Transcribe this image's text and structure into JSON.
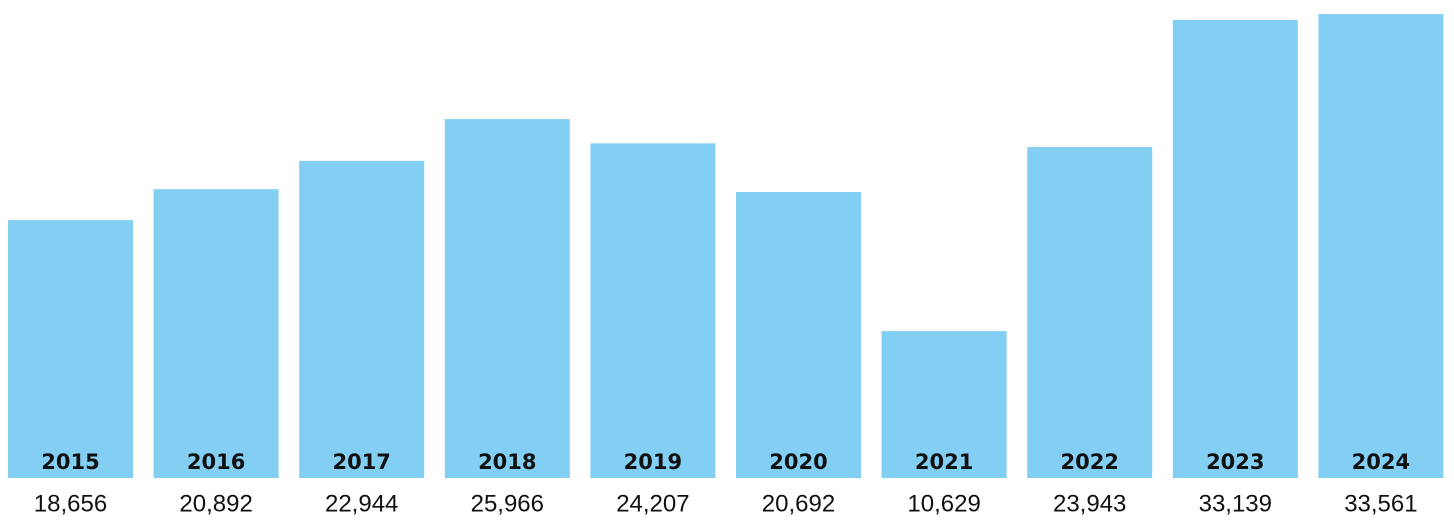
{
  "chart_data": {
    "type": "bar",
    "categories": [
      "2015",
      "2016",
      "2017",
      "2018",
      "2019",
      "2020",
      "2021",
      "2022",
      "2023",
      "2024"
    ],
    "values": [
      18656,
      20892,
      22944,
      25966,
      24207,
      20692,
      10629,
      23943,
      33139,
      33561
    ],
    "value_labels": [
      "18,656",
      "20,892",
      "22,944",
      "25,966",
      "24,207",
      "20,692",
      "10,629",
      "23,943",
      "33,139",
      "33,561"
    ],
    "color": "#83cff4",
    "ylim": [
      0,
      34000
    ]
  }
}
